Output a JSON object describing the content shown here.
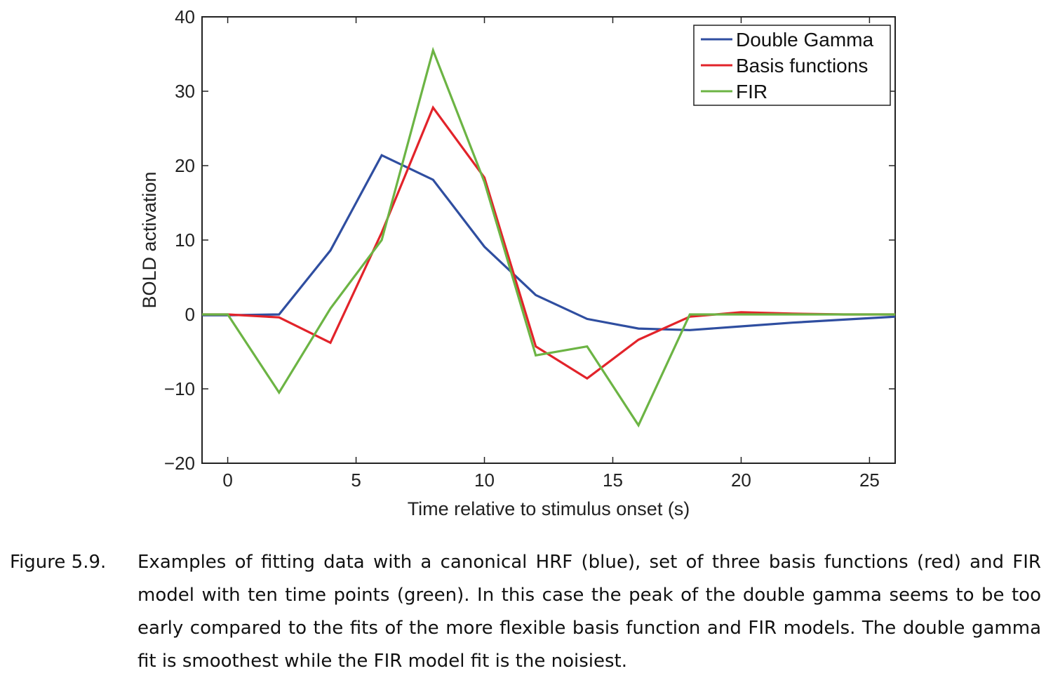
{
  "chart_data": {
    "type": "line",
    "xlabel": "Time relative to stimulus onset (s)",
    "ylabel": "BOLD activation",
    "xlim": [
      -1,
      26
    ],
    "ylim": [
      -20,
      40
    ],
    "xticks": [
      0,
      5,
      10,
      15,
      20,
      25
    ],
    "yticks": [
      -20,
      -10,
      0,
      10,
      20,
      30,
      40
    ],
    "xtick_labels": [
      "0",
      "5",
      "10",
      "15",
      "20",
      "25"
    ],
    "ytick_labels": [
      "−20",
      "−10",
      "0",
      "10",
      "20",
      "30",
      "40"
    ],
    "grid": false,
    "legend_position": "top-right",
    "series": [
      {
        "name": "Double Gamma",
        "color": "#2f4ea0",
        "x": [
          -1,
          0,
          2,
          4,
          6,
          8,
          10,
          12,
          14,
          16,
          18,
          20,
          22,
          24,
          26
        ],
        "y": [
          -0.1,
          -0.1,
          0.0,
          8.6,
          21.4,
          18.1,
          9.1,
          2.6,
          -0.6,
          -1.9,
          -2.1,
          -1.6,
          -1.1,
          -0.7,
          -0.3
        ]
      },
      {
        "name": "Basis functions",
        "color": "#e2232a",
        "x": [
          -1,
          0,
          2,
          4,
          6,
          8,
          10,
          12,
          14,
          16,
          18,
          20,
          22,
          24,
          26
        ],
        "y": [
          0.0,
          0.0,
          -0.4,
          -3.8,
          11.0,
          27.8,
          18.4,
          -4.3,
          -8.6,
          -3.4,
          -0.3,
          0.3,
          0.1,
          0.0,
          0.0
        ]
      },
      {
        "name": "FIR",
        "color": "#6cb444",
        "x": [
          -1,
          0,
          2,
          4,
          6,
          8,
          10,
          12,
          14,
          16,
          18,
          20,
          22,
          24,
          26
        ],
        "y": [
          0.0,
          0.0,
          -10.5,
          0.8,
          10.0,
          35.5,
          17.8,
          -5.5,
          -4.3,
          -14.9,
          0.0,
          0.0,
          0.0,
          0.0,
          0.0
        ]
      }
    ]
  },
  "caption": {
    "label": "Figure 5.9.",
    "text": "Examples of fitting data with a canonical HRF (blue), set of three basis functions (red) and FIR model with ten time points (green). In this case the peak of the double gamma seems to be too early compared to the fits of the more flexible basis function and FIR models. The double gamma fit is smoothest while the FIR model fit is the noisiest."
  }
}
